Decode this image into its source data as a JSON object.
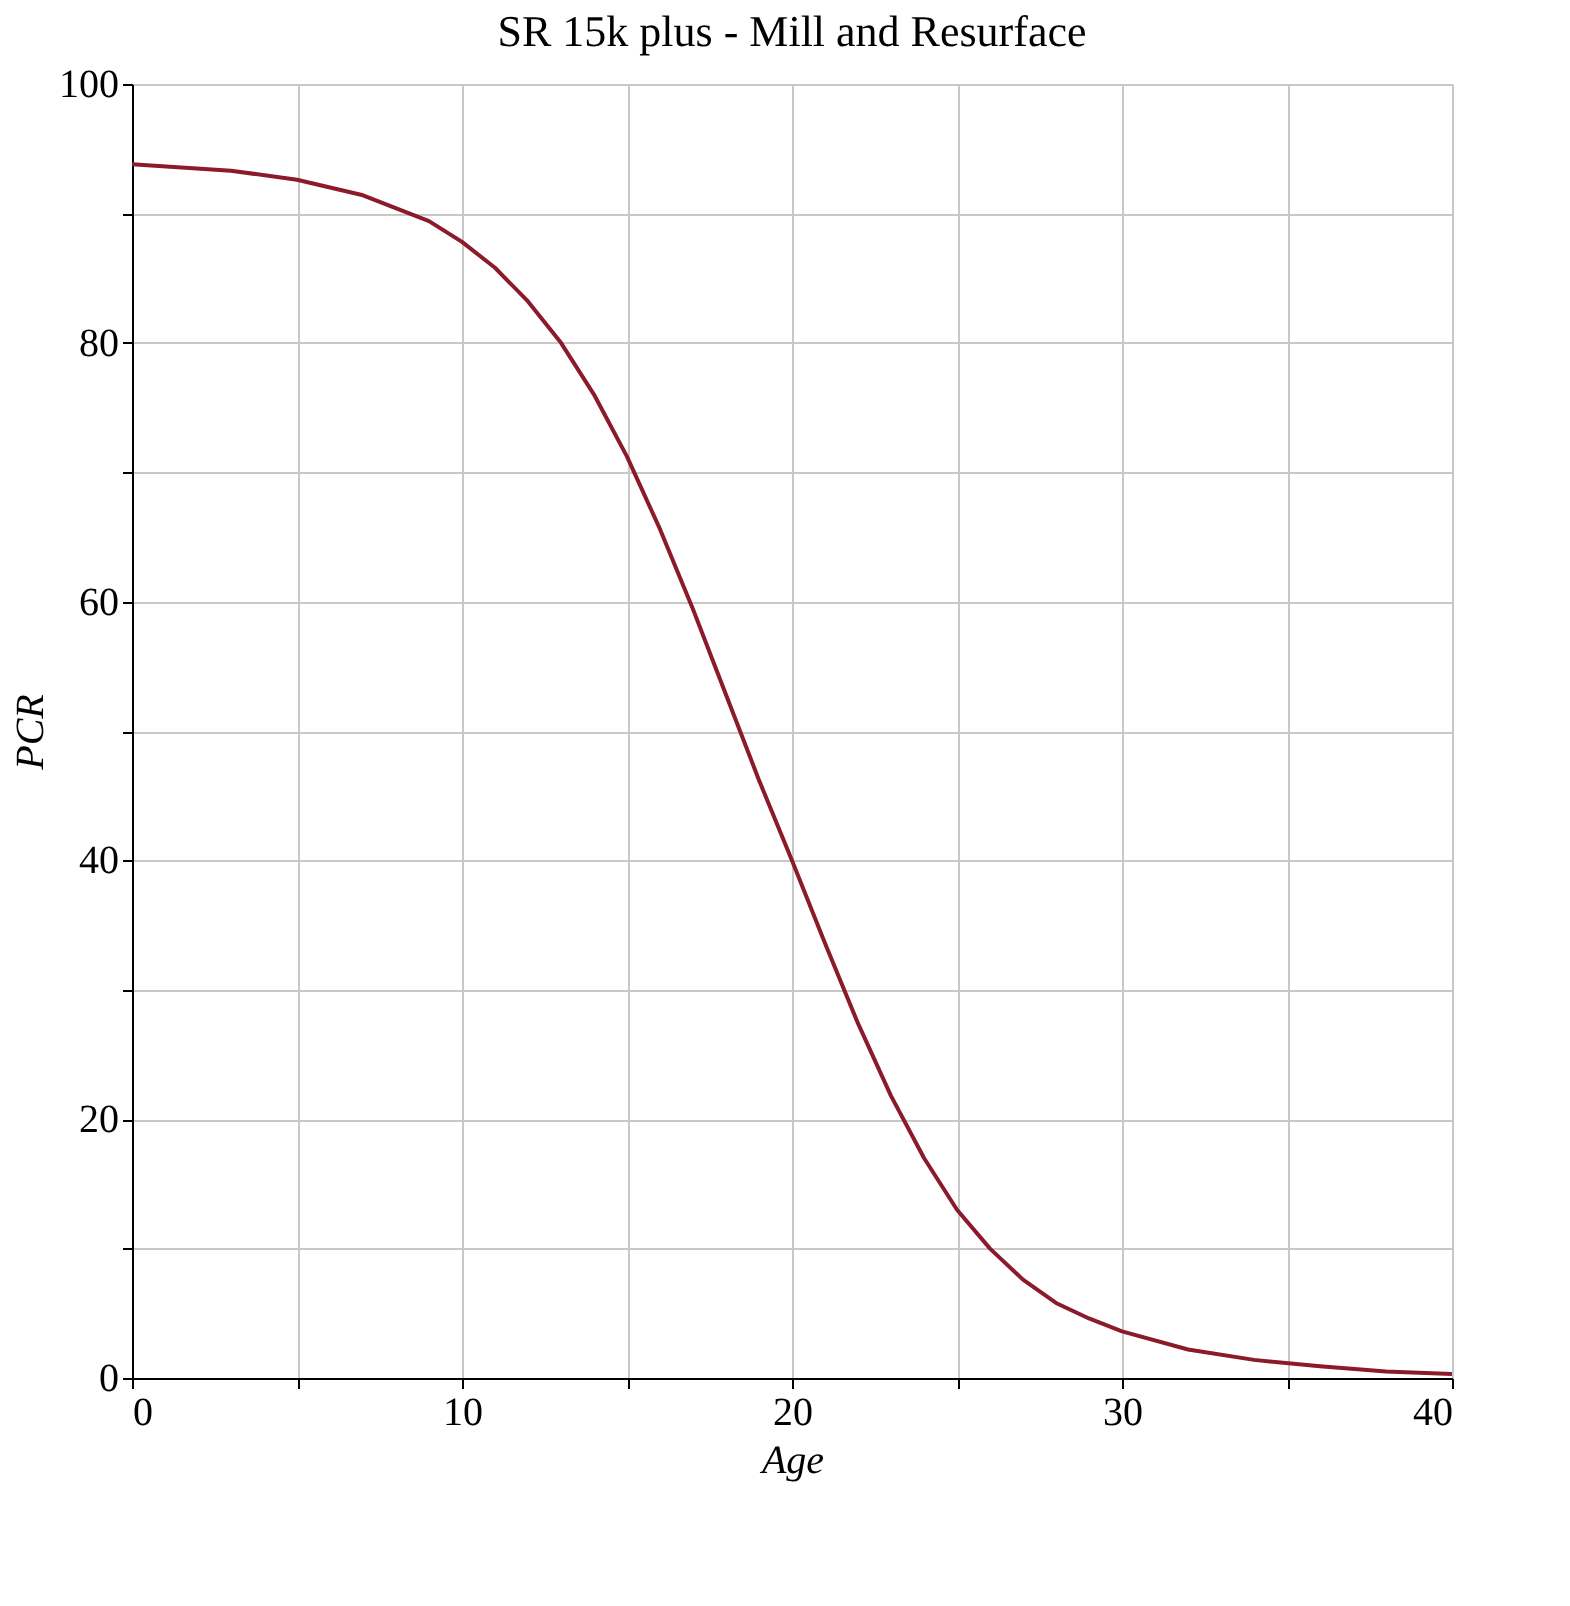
{
  "chart_data": {
    "type": "line",
    "title": "SR 15k plus - Mill and Resurface",
    "xlabel": "Age",
    "ylabel": "PCR",
    "x": [
      0,
      3,
      5,
      7,
      9,
      10,
      11,
      12,
      13,
      14,
      15,
      16,
      17,
      18,
      19,
      20,
      21,
      22,
      23,
      24,
      25,
      26,
      27,
      28,
      29,
      30,
      32,
      34,
      36,
      38,
      40
    ],
    "series": [
      {
        "color": "#8b1a2b",
        "values": [
          93.8,
          93.3,
          92.6,
          91.4,
          89.4,
          87.8,
          85.8,
          83.2,
          80.0,
          76.0,
          71.2,
          65.6,
          59.4,
          52.8,
          46.2,
          40.0,
          33.6,
          27.4,
          21.8,
          17.0,
          13.0,
          10.0,
          7.6,
          5.8,
          4.6,
          3.6,
          2.2,
          1.4,
          0.9,
          0.5,
          0.3
        ]
      }
    ],
    "xlim": [
      0,
      40
    ],
    "ylim": [
      0,
      100
    ],
    "xticks": [
      0,
      {
        "value": 5,
        "label": null
      },
      10,
      {
        "value": 15,
        "label": null
      },
      20,
      {
        "value": 25,
        "label": null
      },
      30,
      {
        "value": 35,
        "label": null
      },
      40
    ],
    "yticks": [
      0,
      {
        "value": 10,
        "label": null
      },
      20,
      {
        "value": 30,
        "label": null
      },
      40,
      {
        "value": 50,
        "label": null
      },
      60,
      {
        "value": 70,
        "label": null
      },
      80,
      {
        "value": 90,
        "label": null
      },
      100
    ],
    "grid": true,
    "legend": false,
    "marker": "none",
    "line_style": "solid"
  }
}
